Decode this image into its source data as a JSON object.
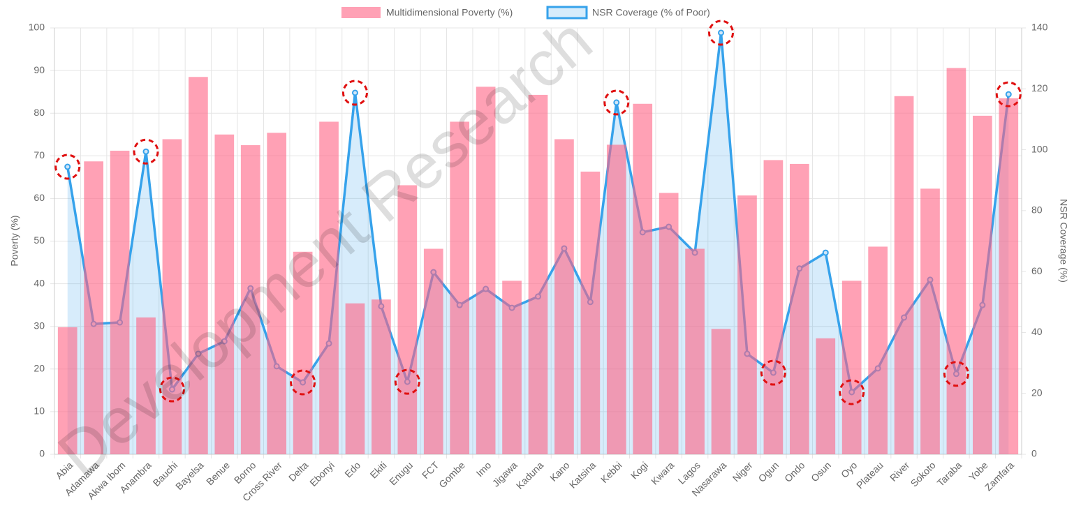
{
  "chart_data": {
    "type": "bar-line",
    "watermark": "Development Research",
    "y_label": "Poverty (%)",
    "y2_label": "NSR Coverage (%)",
    "categories": [
      "Abia",
      "Adamawa",
      "Akwa Ibom",
      "Anambra",
      "Bauchi",
      "Bayelsa",
      "Benue",
      "Borno",
      "Cross River",
      "Delta",
      "Ebonyi",
      "Edo",
      "Ekiti",
      "Enugu",
      "FCT",
      "Gombe",
      "Imo",
      "Jigawa",
      "Kaduna",
      "Kano",
      "Katsina",
      "Kebbi",
      "Kogi",
      "Kwara",
      "Lagos",
      "Nasarawa",
      "Niger",
      "Ogun",
      "Ondo",
      "Osun",
      "Oyo",
      "Plateau",
      "River",
      "Sokoto",
      "Taraba",
      "Yobe",
      "Zamfara"
    ],
    "series": [
      {
        "name": "Multidimensional Poverty (%)",
        "type": "bar",
        "color": "#ff6384",
        "values": [
          29.8,
          68.7,
          71.2,
          32.1,
          73.9,
          88.5,
          75.0,
          72.5,
          75.4,
          47.5,
          78.0,
          35.4,
          36.3,
          63.1,
          48.2,
          78.0,
          86.2,
          40.7,
          84.3,
          73.9,
          66.3,
          72.6,
          82.2,
          61.3,
          48.2,
          29.4,
          60.7,
          69.0,
          68.1,
          27.2,
          40.7,
          48.7,
          84.0,
          62.3,
          90.6,
          79.4,
          83.5
        ]
      },
      {
        "name": "NSR Coverage (% of Poor)",
        "type": "line",
        "axis": "y2",
        "color": "#36a2eb",
        "values": [
          94.4,
          42.8,
          43.3,
          99.4,
          21.3,
          33.0,
          37.1,
          54.5,
          28.9,
          23.6,
          36.4,
          118.7,
          48.6,
          23.8,
          59.8,
          49.0,
          54.3,
          48.1,
          51.8,
          67.6,
          50.0,
          115.5,
          72.9,
          74.7,
          66.2,
          138.4,
          33.0,
          26.8,
          61.0,
          66.2,
          20.4,
          28.2,
          44.9,
          57.3,
          26.4,
          49.0,
          118.2
        ]
      }
    ],
    "highlight": [
      0,
      3,
      4,
      9,
      11,
      13,
      21,
      25,
      27,
      30,
      34,
      36
    ],
    "highlight_color": "#e01010",
    "ylim": [
      0,
      100
    ],
    "yticks": [
      0,
      10,
      20,
      30,
      40,
      50,
      60,
      70,
      80,
      90,
      100
    ],
    "y2lim": [
      0,
      140
    ],
    "y2ticks": [
      0,
      20,
      40,
      60,
      80,
      100,
      120,
      140
    ],
    "grid": true
  }
}
